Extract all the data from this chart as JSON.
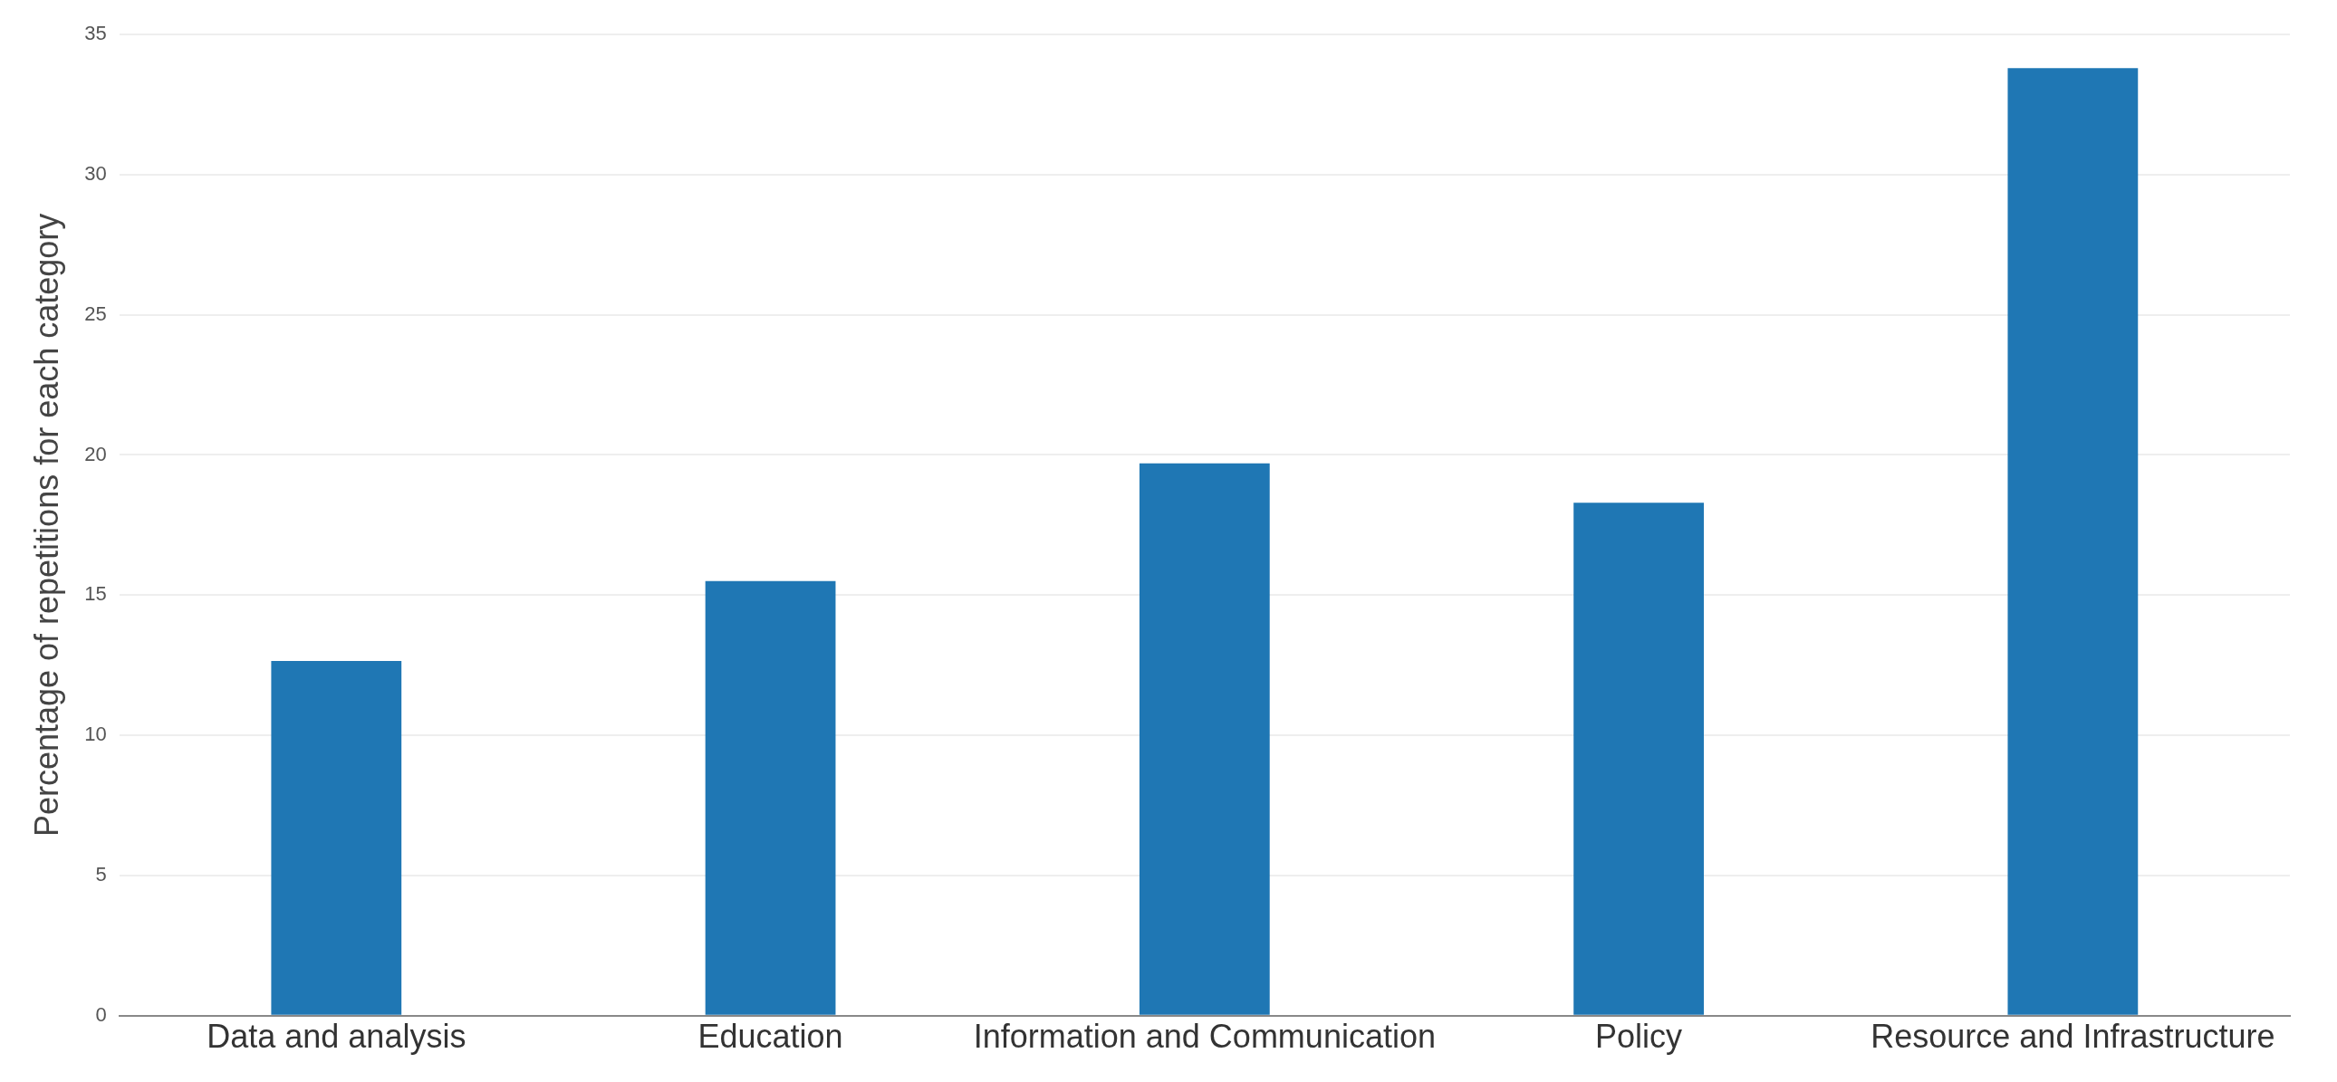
{
  "chart_data": {
    "type": "bar",
    "ylabel": "Percentage of repetitions for each category",
    "categories": [
      "Data and analysis",
      "Education",
      "Information and Communication",
      "Policy",
      "Resource and Infrastructure"
    ],
    "values": [
      12.65,
      15.5,
      19.7,
      18.3,
      33.8
    ],
    "color": "#1f77b4",
    "ylim": [
      0,
      35
    ],
    "yticks": [
      0,
      5,
      10,
      15,
      20,
      25,
      30,
      35
    ],
    "grid": "y",
    "legend": false
  }
}
